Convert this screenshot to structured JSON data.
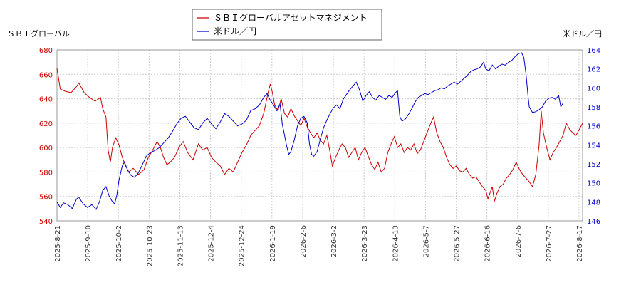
{
  "chart_data": {
    "type": "line",
    "left_axis_label": "ＳＢＩグローバル",
    "right_axis_label": "米ドル／円",
    "x_ticks": [
      "2025-8-21",
      "2025-9-10",
      "2025-10-2",
      "2025-10-23",
      "2025-11-13",
      "2025-12-4",
      "2025-12-24",
      "2026-1-19",
      "2026-2-6",
      "2026-3-2",
      "2026-3-23",
      "2026-4-13",
      "2026-5-7",
      "2026-5-27",
      "2026-6-16",
      "2026-7-6",
      "2026-7-27",
      "2026-8-17"
    ],
    "y_left": {
      "min": 540,
      "max": 680,
      "ticks": [
        540,
        560,
        580,
        600,
        620,
        640,
        660,
        680
      ]
    },
    "y_right": {
      "min": 146,
      "max": 164,
      "ticks": [
        146,
        148,
        150,
        152,
        154,
        156,
        158,
        160,
        162,
        164
      ]
    },
    "series": [
      {
        "name": "ＳＢＩグローバルアセットマネジメント",
        "axis": "left",
        "color": "#cc0000",
        "keypoints": [
          [
            0,
            665
          ],
          [
            3,
            648
          ],
          [
            8,
            646
          ],
          [
            13,
            645
          ],
          [
            18,
            650
          ],
          [
            20,
            653
          ],
          [
            25,
            645
          ],
          [
            30,
            641
          ],
          [
            35,
            638
          ],
          [
            40,
            641
          ],
          [
            42,
            632
          ],
          [
            45,
            625
          ],
          [
            47,
            598
          ],
          [
            49,
            588
          ],
          [
            51,
            600
          ],
          [
            54,
            608
          ],
          [
            57,
            602
          ],
          [
            60,
            592
          ],
          [
            63,
            585
          ],
          [
            66,
            580
          ],
          [
            70,
            583
          ],
          [
            75,
            578
          ],
          [
            80,
            582
          ],
          [
            84,
            592
          ],
          [
            88,
            598
          ],
          [
            92,
            605
          ],
          [
            95,
            600
          ],
          [
            98,
            592
          ],
          [
            101,
            586
          ],
          [
            104,
            588
          ],
          [
            108,
            592
          ],
          [
            112,
            600
          ],
          [
            116,
            605
          ],
          [
            120,
            596
          ],
          [
            125,
            590
          ],
          [
            130,
            603
          ],
          [
            134,
            598
          ],
          [
            138,
            600
          ],
          [
            142,
            592
          ],
          [
            146,
            588
          ],
          [
            150,
            585
          ],
          [
            154,
            578
          ],
          [
            158,
            583
          ],
          [
            162,
            580
          ],
          [
            166,
            588
          ],
          [
            170,
            596
          ],
          [
            174,
            602
          ],
          [
            178,
            610
          ],
          [
            182,
            614
          ],
          [
            186,
            618
          ],
          [
            190,
            628
          ],
          [
            194,
            645
          ],
          [
            196,
            652
          ],
          [
            198,
            645
          ],
          [
            200,
            635
          ],
          [
            203,
            630
          ],
          [
            206,
            640
          ],
          [
            209,
            628
          ],
          [
            212,
            625
          ],
          [
            215,
            632
          ],
          [
            218,
            626
          ],
          [
            221,
            622
          ],
          [
            224,
            618
          ],
          [
            227,
            624
          ],
          [
            230,
            617
          ],
          [
            233,
            612
          ],
          [
            236,
            608
          ],
          [
            239,
            612
          ],
          [
            242,
            606
          ],
          [
            245,
            603
          ],
          [
            248,
            610
          ],
          [
            251,
            596
          ],
          [
            253,
            585
          ],
          [
            256,
            592
          ],
          [
            259,
            598
          ],
          [
            262,
            603
          ],
          [
            265,
            600
          ],
          [
            268,
            592
          ],
          [
            271,
            596
          ],
          [
            274,
            600
          ],
          [
            277,
            590
          ],
          [
            280,
            596
          ],
          [
            283,
            600
          ],
          [
            286,
            593
          ],
          [
            289,
            586
          ],
          [
            292,
            582
          ],
          [
            295,
            588
          ],
          [
            298,
            580
          ],
          [
            301,
            583
          ],
          [
            304,
            596
          ],
          [
            307,
            603
          ],
          [
            310,
            609
          ],
          [
            313,
            600
          ],
          [
            316,
            603
          ],
          [
            319,
            596
          ],
          [
            322,
            600
          ],
          [
            325,
            598
          ],
          [
            328,
            603
          ],
          [
            331,
            595
          ],
          [
            334,
            598
          ],
          [
            337,
            605
          ],
          [
            340,
            612
          ],
          [
            343,
            619
          ],
          [
            346,
            625
          ],
          [
            349,
            612
          ],
          [
            352,
            605
          ],
          [
            355,
            600
          ],
          [
            358,
            592
          ],
          [
            361,
            586
          ],
          [
            364,
            583
          ],
          [
            367,
            585
          ],
          [
            370,
            581
          ],
          [
            373,
            580
          ],
          [
            376,
            583
          ],
          [
            379,
            578
          ],
          [
            382,
            575
          ],
          [
            385,
            576
          ],
          [
            388,
            572
          ],
          [
            391,
            568
          ],
          [
            394,
            565
          ],
          [
            396,
            558
          ],
          [
            398,
            563
          ],
          [
            400,
            568
          ],
          [
            402,
            556
          ],
          [
            404,
            562
          ],
          [
            407,
            568
          ],
          [
            410,
            570
          ],
          [
            413,
            575
          ],
          [
            416,
            578
          ],
          [
            419,
            582
          ],
          [
            422,
            588
          ],
          [
            425,
            582
          ],
          [
            428,
            578
          ],
          [
            431,
            575
          ],
          [
            434,
            572
          ],
          [
            437,
            568
          ],
          [
            440,
            578
          ],
          [
            443,
            602
          ],
          [
            445,
            630
          ],
          [
            447,
            612
          ],
          [
            450,
            600
          ],
          [
            453,
            590
          ],
          [
            456,
            596
          ],
          [
            459,
            600
          ],
          [
            462,
            605
          ],
          [
            465,
            610
          ],
          [
            468,
            620
          ],
          [
            471,
            615
          ],
          [
            474,
            612
          ],
          [
            477,
            610
          ],
          [
            480,
            615
          ],
          [
            483,
            620
          ]
        ]
      },
      {
        "name": "米ドル／円",
        "axis": "right",
        "color": "#0000cc",
        "keypoints": [
          [
            0,
            148.0
          ],
          [
            3,
            147.4
          ],
          [
            6,
            147.9
          ],
          [
            10,
            147.7
          ],
          [
            14,
            147.3
          ],
          [
            18,
            148.3
          ],
          [
            20,
            148.5
          ],
          [
            24,
            147.8
          ],
          [
            28,
            147.4
          ],
          [
            32,
            147.7
          ],
          [
            36,
            147.2
          ],
          [
            39,
            148.0
          ],
          [
            42,
            149.2
          ],
          [
            45,
            149.6
          ],
          [
            48,
            148.6
          ],
          [
            51,
            148.0
          ],
          [
            53,
            147.8
          ],
          [
            55,
            148.7
          ],
          [
            57,
            150.3
          ],
          [
            60,
            151.8
          ],
          [
            62,
            152.2
          ],
          [
            65,
            151.3
          ],
          [
            68,
            150.8
          ],
          [
            71,
            150.6
          ],
          [
            74,
            150.9
          ],
          [
            78,
            151.8
          ],
          [
            82,
            152.8
          ],
          [
            86,
            153.2
          ],
          [
            90,
            153.4
          ],
          [
            94,
            153.7
          ],
          [
            98,
            154.2
          ],
          [
            102,
            154.7
          ],
          [
            106,
            155.4
          ],
          [
            110,
            156.2
          ],
          [
            114,
            156.8
          ],
          [
            118,
            157.0
          ],
          [
            122,
            156.4
          ],
          [
            126,
            155.8
          ],
          [
            130,
            155.6
          ],
          [
            134,
            156.3
          ],
          [
            138,
            156.8
          ],
          [
            142,
            156.2
          ],
          [
            146,
            155.7
          ],
          [
            150,
            156.4
          ],
          [
            154,
            157.3
          ],
          [
            158,
            157.0
          ],
          [
            162,
            156.5
          ],
          [
            166,
            156.0
          ],
          [
            170,
            156.2
          ],
          [
            174,
            156.6
          ],
          [
            178,
            157.6
          ],
          [
            182,
            157.8
          ],
          [
            186,
            158.2
          ],
          [
            190,
            159.0
          ],
          [
            193,
            159.4
          ],
          [
            196,
            158.7
          ],
          [
            199,
            158.2
          ],
          [
            202,
            157.6
          ],
          [
            205,
            158.3
          ],
          [
            207,
            156.2
          ],
          [
            209,
            155.1
          ],
          [
            211,
            153.9
          ],
          [
            213,
            153.0
          ],
          [
            215,
            153.3
          ],
          [
            218,
            154.5
          ],
          [
            221,
            156.0
          ],
          [
            224,
            156.8
          ],
          [
            227,
            157.0
          ],
          [
            230,
            156.3
          ],
          [
            232,
            154.1
          ],
          [
            234,
            153.0
          ],
          [
            236,
            152.8
          ],
          [
            239,
            153.3
          ],
          [
            242,
            154.6
          ],
          [
            245,
            155.8
          ],
          [
            248,
            156.6
          ],
          [
            251,
            157.3
          ],
          [
            254,
            157.9
          ],
          [
            257,
            158.2
          ],
          [
            260,
            157.8
          ],
          [
            263,
            158.8
          ],
          [
            266,
            159.3
          ],
          [
            269,
            159.8
          ],
          [
            272,
            160.2
          ],
          [
            275,
            160.6
          ],
          [
            278,
            159.8
          ],
          [
            281,
            158.6
          ],
          [
            284,
            159.2
          ],
          [
            287,
            159.6
          ],
          [
            290,
            159.0
          ],
          [
            293,
            158.7
          ],
          [
            296,
            159.2
          ],
          [
            299,
            159.0
          ],
          [
            302,
            158.8
          ],
          [
            305,
            159.2
          ],
          [
            308,
            159.0
          ],
          [
            311,
            159.5
          ],
          [
            313,
            159.7
          ],
          [
            315,
            157.0
          ],
          [
            317,
            156.5
          ],
          [
            320,
            156.7
          ],
          [
            323,
            157.2
          ],
          [
            326,
            157.8
          ],
          [
            329,
            158.5
          ],
          [
            332,
            159.0
          ],
          [
            335,
            159.2
          ],
          [
            338,
            159.4
          ],
          [
            341,
            159.3
          ],
          [
            344,
            159.5
          ],
          [
            347,
            159.7
          ],
          [
            350,
            159.8
          ],
          [
            353,
            160.0
          ],
          [
            356,
            159.9
          ],
          [
            359,
            160.2
          ],
          [
            362,
            160.4
          ],
          [
            365,
            160.6
          ],
          [
            368,
            160.4
          ],
          [
            371,
            160.7
          ],
          [
            374,
            161.0
          ],
          [
            377,
            161.3
          ],
          [
            380,
            161.7
          ],
          [
            383,
            161.9
          ],
          [
            386,
            162.0
          ],
          [
            389,
            162.2
          ],
          [
            392,
            162.7
          ],
          [
            394,
            162.0
          ],
          [
            397,
            161.8
          ],
          [
            400,
            162.4
          ],
          [
            403,
            162.0
          ],
          [
            406,
            162.3
          ],
          [
            409,
            162.5
          ],
          [
            412,
            162.4
          ],
          [
            415,
            162.7
          ],
          [
            418,
            162.9
          ],
          [
            421,
            163.3
          ],
          [
            424,
            163.6
          ],
          [
            427,
            163.7
          ],
          [
            429,
            163.2
          ],
          [
            431,
            161.5
          ],
          [
            433,
            159.0
          ],
          [
            434,
            158.0
          ],
          [
            437,
            157.4
          ],
          [
            440,
            157.5
          ],
          [
            443,
            157.7
          ],
          [
            446,
            158.0
          ],
          [
            449,
            158.6
          ],
          [
            452,
            158.9
          ],
          [
            455,
            159.0
          ],
          [
            458,
            158.8
          ],
          [
            461,
            159.2
          ],
          [
            463,
            158.0
          ],
          [
            465,
            158.4
          ]
        ]
      }
    ]
  }
}
